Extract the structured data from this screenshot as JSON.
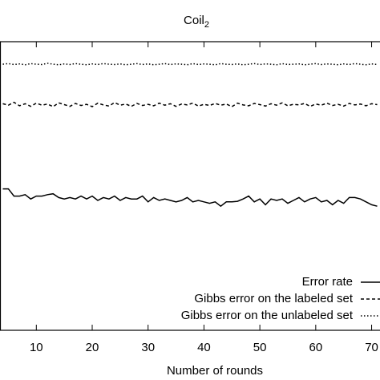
{
  "chart_data": {
    "type": "line",
    "title": "Coil",
    "title_subscript": "2",
    "xlabel": "Number of rounds",
    "x": [
      4,
      5,
      6,
      7,
      8,
      9,
      10,
      11,
      12,
      13,
      14,
      15,
      16,
      17,
      18,
      19,
      20,
      21,
      22,
      23,
      24,
      25,
      26,
      27,
      28,
      29,
      30,
      31,
      32,
      33,
      34,
      35,
      36,
      37,
      38,
      39,
      40,
      41,
      42,
      43,
      44,
      45,
      46,
      47,
      48,
      49,
      50,
      51,
      52,
      53,
      54,
      55,
      56,
      57,
      58,
      59,
      60,
      61,
      62,
      63,
      64,
      65,
      66,
      67,
      68,
      69,
      70,
      71
    ],
    "xlim": [
      3.5,
      71.5
    ],
    "xticks": [
      10,
      20,
      30,
      40,
      50,
      60,
      70
    ],
    "ylim": [
      0,
      1
    ],
    "legend": "lower right",
    "series": [
      {
        "name": "Error rate",
        "color": "#000000",
        "dash": "solid",
        "values": [
          0.49,
          0.49,
          0.465,
          0.465,
          0.47,
          0.455,
          0.465,
          0.465,
          0.47,
          0.473,
          0.46,
          0.455,
          0.46,
          0.455,
          0.465,
          0.455,
          0.465,
          0.45,
          0.46,
          0.455,
          0.465,
          0.45,
          0.46,
          0.455,
          0.455,
          0.465,
          0.445,
          0.46,
          0.45,
          0.455,
          0.45,
          0.445,
          0.45,
          0.46,
          0.445,
          0.45,
          0.445,
          0.44,
          0.445,
          0.43,
          0.445,
          0.445,
          0.447,
          0.455,
          0.465,
          0.445,
          0.455,
          0.435,
          0.455,
          0.45,
          0.455,
          0.44,
          0.45,
          0.46,
          0.445,
          0.455,
          0.46,
          0.445,
          0.45,
          0.435,
          0.45,
          0.44,
          0.46,
          0.46,
          0.455,
          0.445,
          0.435,
          0.43
        ]
      },
      {
        "name": "Gibbs error on the labeled set",
        "color": "#000000",
        "dash": "dashed",
        "values": [
          0.785,
          0.78,
          0.79,
          0.778,
          0.785,
          0.776,
          0.787,
          0.78,
          0.784,
          0.775,
          0.788,
          0.782,
          0.776,
          0.786,
          0.779,
          0.783,
          0.775,
          0.787,
          0.781,
          0.777,
          0.789,
          0.78,
          0.784,
          0.776,
          0.786,
          0.779,
          0.783,
          0.778,
          0.787,
          0.78,
          0.785,
          0.776,
          0.784,
          0.781,
          0.787,
          0.777,
          0.783,
          0.779,
          0.786,
          0.78,
          0.784,
          0.775,
          0.787,
          0.781,
          0.778,
          0.786,
          0.782,
          0.777,
          0.785,
          0.78,
          0.788,
          0.778,
          0.783,
          0.781,
          0.786,
          0.776,
          0.784,
          0.78,
          0.787,
          0.779,
          0.783,
          0.777,
          0.786,
          0.781,
          0.784,
          0.778,
          0.785,
          0.782
        ]
      },
      {
        "name": "Gibbs error on the unlabeled set",
        "color": "#000000",
        "dash": "dotted",
        "values": [
          0.922,
          0.924,
          0.921,
          0.923,
          0.92,
          0.924,
          0.922,
          0.921,
          0.925,
          0.922,
          0.92,
          0.923,
          0.921,
          0.924,
          0.922,
          0.92,
          0.923,
          0.921,
          0.924,
          0.922,
          0.921,
          0.923,
          0.92,
          0.922,
          0.924,
          0.921,
          0.923,
          0.92,
          0.922,
          0.924,
          0.921,
          0.923,
          0.922,
          0.92,
          0.924,
          0.921,
          0.923,
          0.922,
          0.92,
          0.924,
          0.922,
          0.921,
          0.923,
          0.92,
          0.922,
          0.924,
          0.921,
          0.923,
          0.922,
          0.92,
          0.924,
          0.921,
          0.922,
          0.923,
          0.92,
          0.922,
          0.924,
          0.921,
          0.923,
          0.922,
          0.92,
          0.923,
          0.921,
          0.924,
          0.922,
          0.92,
          0.923,
          0.921
        ]
      }
    ]
  }
}
